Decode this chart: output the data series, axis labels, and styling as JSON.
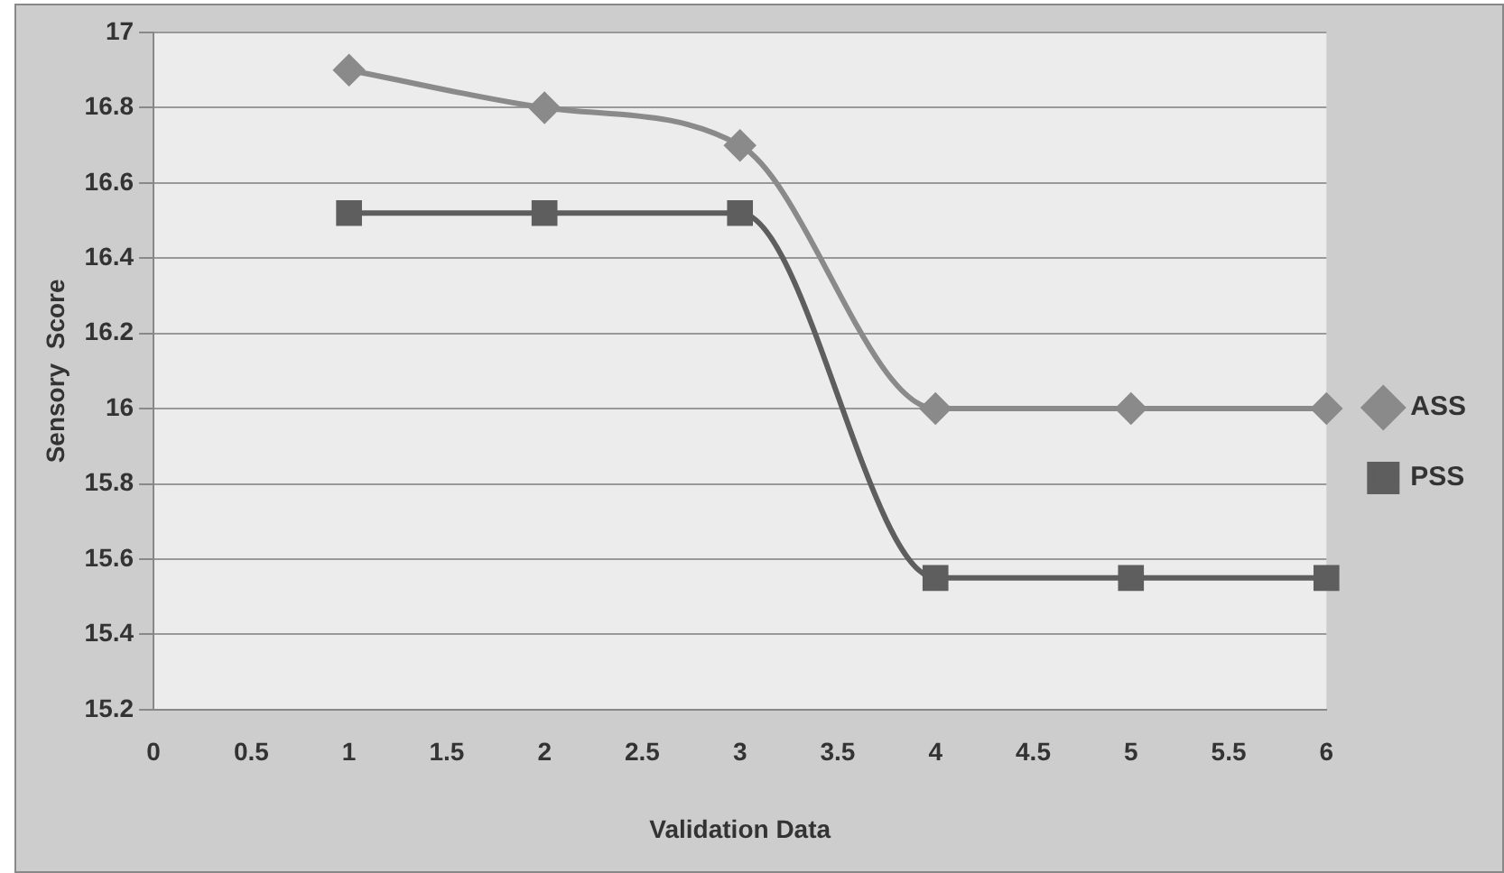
{
  "chart_data": {
    "type": "line",
    "xlabel": "Validation Data",
    "ylabel": "Sensory  Score",
    "x": [
      1,
      2,
      3,
      4,
      5,
      6
    ],
    "series": [
      {
        "name": "ASS",
        "color": "#8a8a8a",
        "marker": "diamond",
        "values": [
          16.9,
          16.8,
          16.7,
          16,
          16,
          16
        ]
      },
      {
        "name": "PSS",
        "color": "#5e5e5e",
        "marker": "square",
        "values": [
          16.52,
          16.52,
          16.52,
          15.55,
          15.55,
          15.55
        ]
      }
    ],
    "xlim": [
      0,
      6
    ],
    "xticks": [
      0,
      0.5,
      1,
      1.5,
      2,
      2.5,
      3,
      3.5,
      4,
      4.5,
      5,
      5.5,
      6
    ],
    "ylim": [
      15.2,
      17
    ],
    "yticks": [
      15.2,
      15.4,
      15.6,
      15.8,
      16,
      16.2,
      16.4,
      16.6,
      16.8,
      17
    ],
    "grid": "y",
    "legend": "right"
  }
}
